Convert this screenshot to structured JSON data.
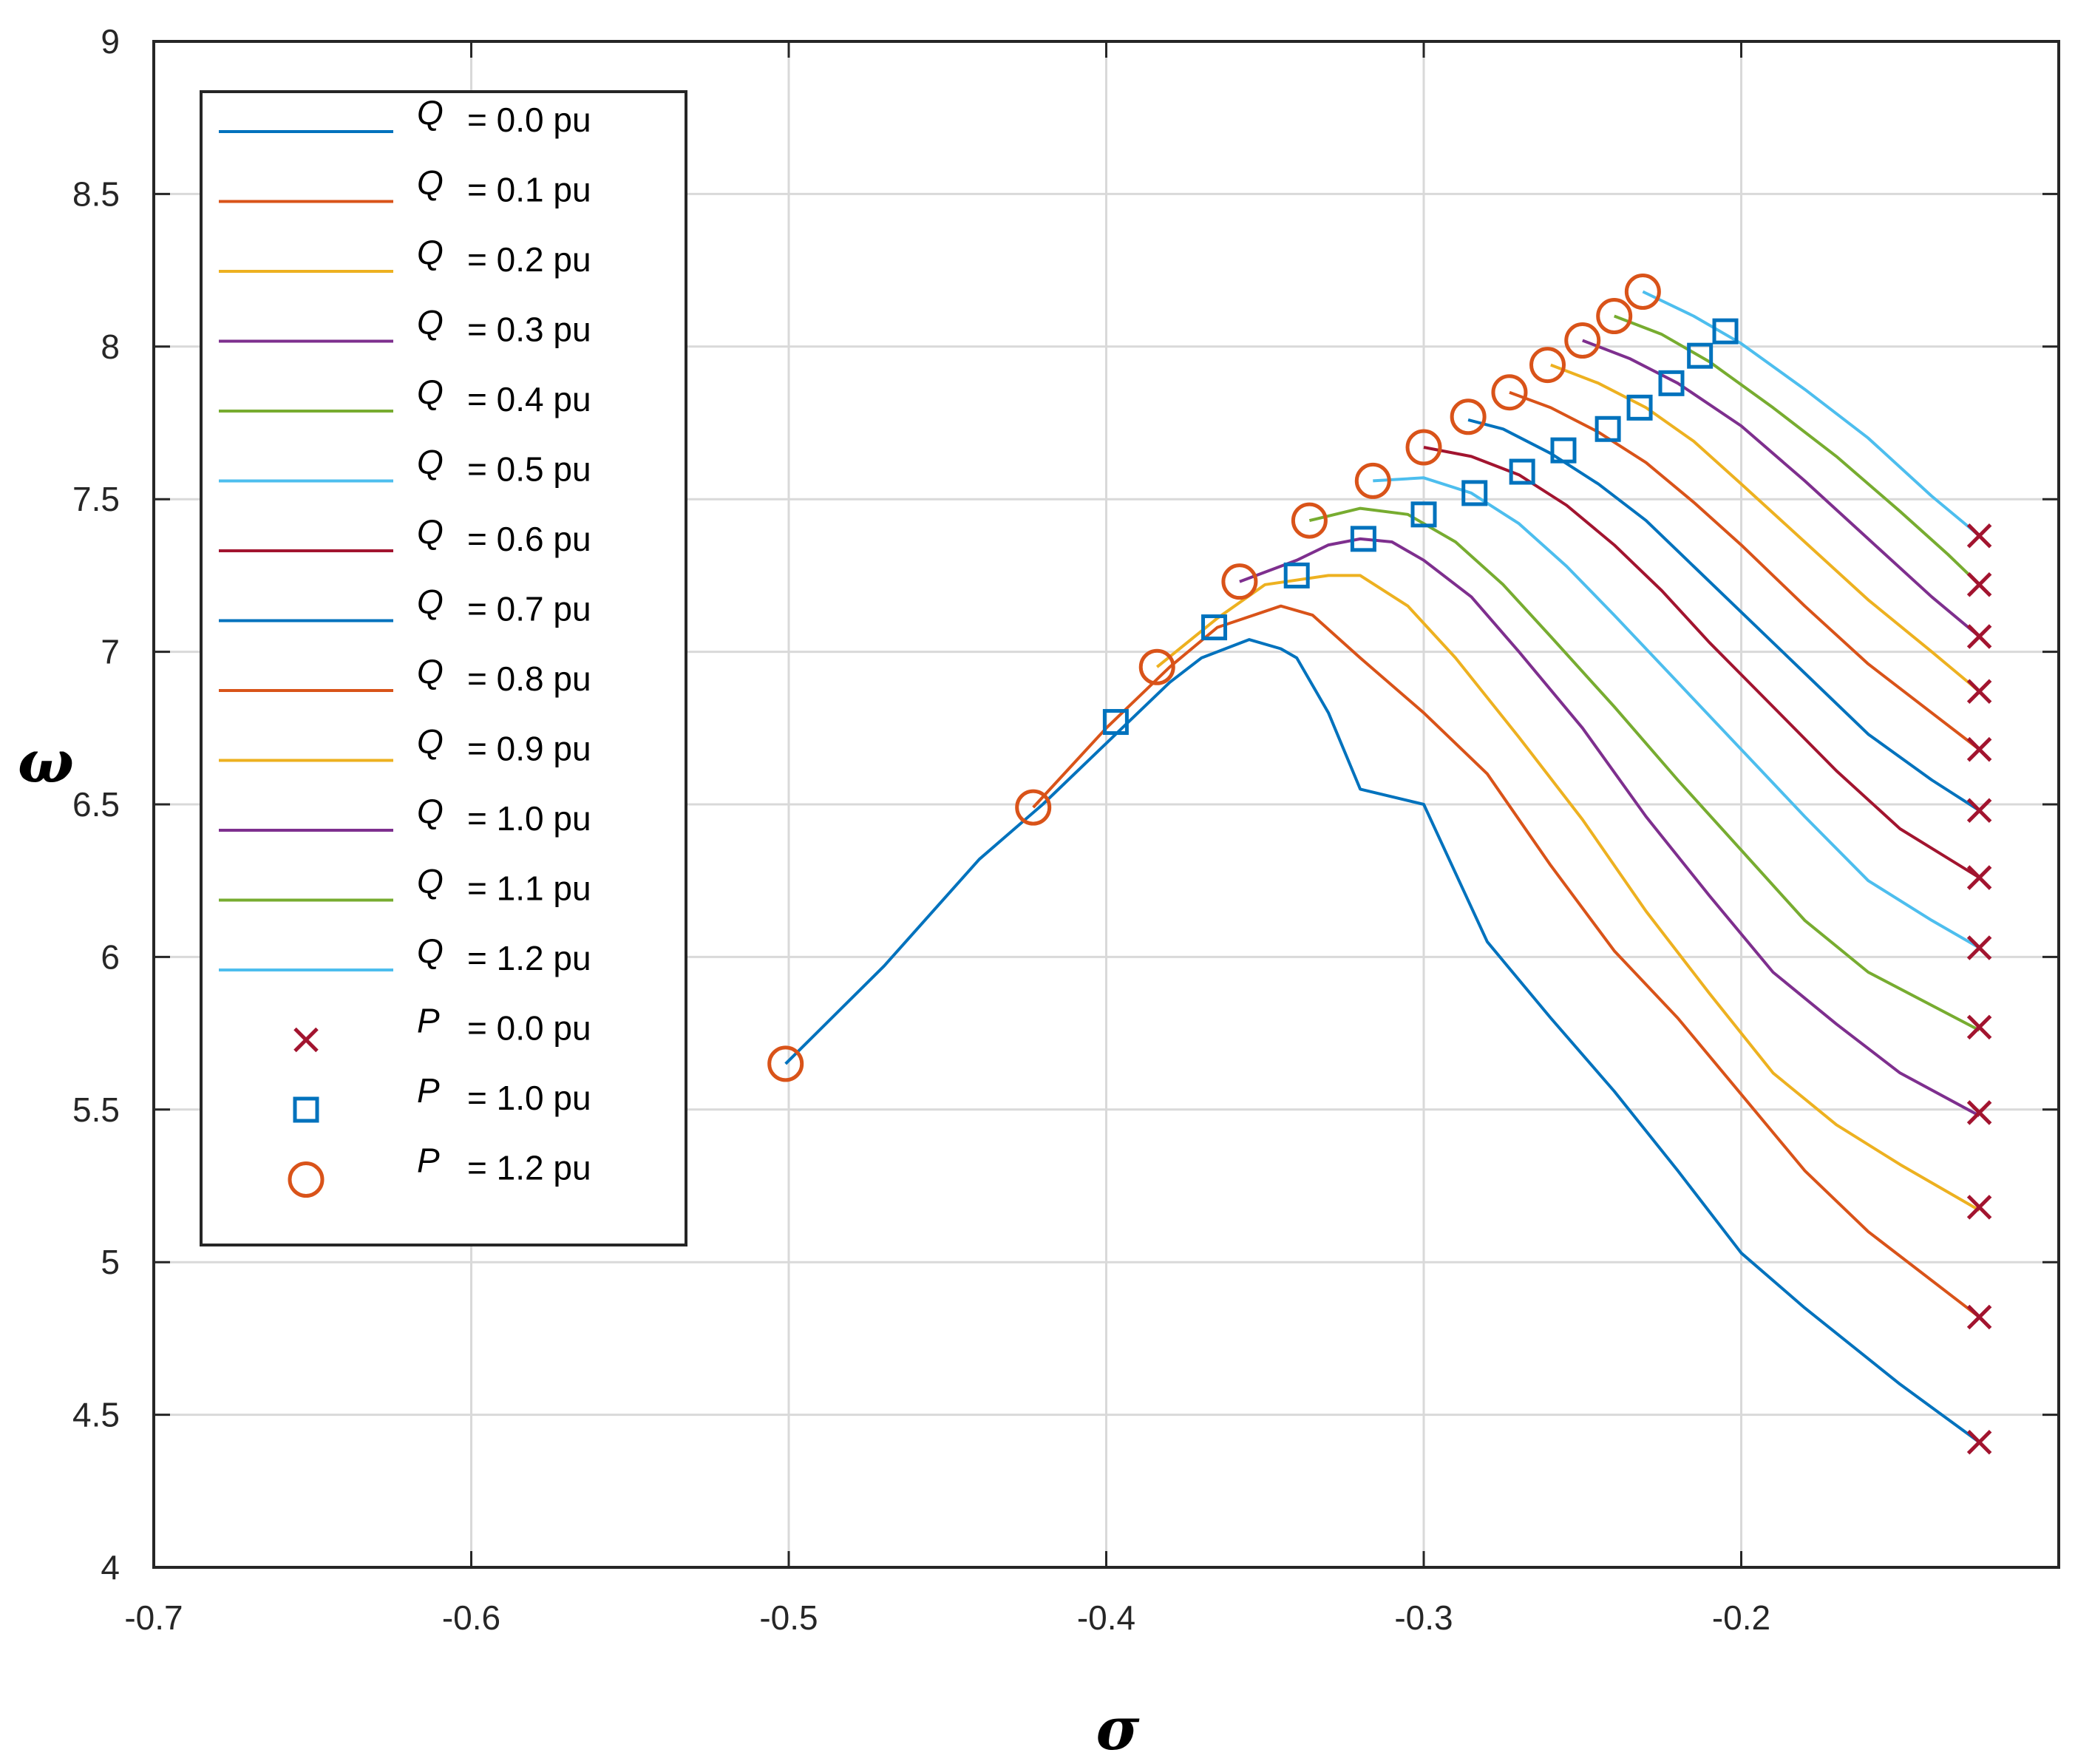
{
  "chart_data": {
    "type": "line",
    "title": "",
    "xlabel": "σ",
    "ylabel": "ω",
    "xlim": [
      -0.7,
      -0.1
    ],
    "ylim": [
      4,
      9
    ],
    "grid": true,
    "xticks": [
      "-0.7",
      "-0.6",
      "-0.5",
      "-0.4",
      "-0.3",
      "-0.2"
    ],
    "yticks": [
      "4",
      "4.5",
      "5",
      "5.5",
      "6",
      "6.5",
      "7",
      "7.5",
      "8",
      "8.5",
      "9"
    ],
    "legend_position": "top-left",
    "series": [
      {
        "name": "Q = 0.0 pu",
        "var": "Q",
        "text": "= 0.0 pu",
        "color": "#0072BD",
        "points": [
          [
            -0.501,
            5.65
          ],
          [
            -0.47,
            5.97
          ],
          [
            -0.44,
            6.32
          ],
          [
            -0.42,
            6.5
          ],
          [
            -0.4,
            6.7
          ],
          [
            -0.39,
            6.8
          ],
          [
            -0.38,
            6.9
          ],
          [
            -0.37,
            6.98
          ],
          [
            -0.355,
            7.04
          ],
          [
            -0.345,
            7.01
          ],
          [
            -0.34,
            6.98
          ],
          [
            -0.33,
            6.8
          ],
          [
            -0.32,
            6.55
          ],
          [
            -0.3,
            6.5
          ],
          [
            -0.28,
            6.05
          ],
          [
            -0.26,
            5.8
          ],
          [
            -0.24,
            5.56
          ],
          [
            -0.22,
            5.3
          ],
          [
            -0.2,
            5.03
          ],
          [
            -0.18,
            4.85
          ],
          [
            -0.15,
            4.6
          ],
          [
            -0.125,
            4.41
          ]
        ]
      },
      {
        "name": "Q = 0.1 pu",
        "var": "Q",
        "text": "= 0.1 pu",
        "color": "#D95319",
        "points": [
          [
            -0.423,
            6.49
          ],
          [
            -0.4,
            6.75
          ],
          [
            -0.38,
            6.95
          ],
          [
            -0.365,
            7.08
          ],
          [
            -0.345,
            7.15
          ],
          [
            -0.335,
            7.12
          ],
          [
            -0.32,
            6.98
          ],
          [
            -0.3,
            6.8
          ],
          [
            -0.28,
            6.6
          ],
          [
            -0.26,
            6.3
          ],
          [
            -0.24,
            6.02
          ],
          [
            -0.22,
            5.8
          ],
          [
            -0.2,
            5.55
          ],
          [
            -0.18,
            5.3
          ],
          [
            -0.16,
            5.1
          ],
          [
            -0.125,
            4.82
          ]
        ]
      },
      {
        "name": "Q = 0.2 pu",
        "var": "Q",
        "text": "= 0.2 pu",
        "color": "#EDB120",
        "points": [
          [
            -0.384,
            6.95
          ],
          [
            -0.365,
            7.11
          ],
          [
            -0.35,
            7.22
          ],
          [
            -0.33,
            7.25
          ],
          [
            -0.32,
            7.25
          ],
          [
            -0.305,
            7.15
          ],
          [
            -0.29,
            6.98
          ],
          [
            -0.27,
            6.72
          ],
          [
            -0.25,
            6.45
          ],
          [
            -0.23,
            6.15
          ],
          [
            -0.21,
            5.88
          ],
          [
            -0.19,
            5.62
          ],
          [
            -0.17,
            5.45
          ],
          [
            -0.15,
            5.32
          ],
          [
            -0.125,
            5.17
          ]
        ]
      },
      {
        "name": "Q = 0.3 pu",
        "var": "Q",
        "text": "= 0.3 pu",
        "color": "#7E2F8E",
        "points": [
          [
            -0.358,
            7.23
          ],
          [
            -0.34,
            7.3
          ],
          [
            -0.33,
            7.35
          ],
          [
            -0.32,
            7.37
          ],
          [
            -0.31,
            7.36
          ],
          [
            -0.3,
            7.3
          ],
          [
            -0.285,
            7.18
          ],
          [
            -0.27,
            7.0
          ],
          [
            -0.25,
            6.75
          ],
          [
            -0.23,
            6.46
          ],
          [
            -0.21,
            6.2
          ],
          [
            -0.19,
            5.95
          ],
          [
            -0.17,
            5.78
          ],
          [
            -0.15,
            5.62
          ],
          [
            -0.125,
            5.48
          ]
        ]
      },
      {
        "name": "Q = 0.4 pu",
        "var": "Q",
        "text": "= 0.4 pu",
        "color": "#77AC30",
        "points": [
          [
            -0.336,
            7.43
          ],
          [
            -0.32,
            7.47
          ],
          [
            -0.305,
            7.45
          ],
          [
            -0.29,
            7.36
          ],
          [
            -0.275,
            7.22
          ],
          [
            -0.26,
            7.05
          ],
          [
            -0.24,
            6.82
          ],
          [
            -0.22,
            6.58
          ],
          [
            -0.2,
            6.35
          ],
          [
            -0.18,
            6.12
          ],
          [
            -0.16,
            5.95
          ],
          [
            -0.125,
            5.76
          ]
        ]
      },
      {
        "name": "Q = 0.5 pu",
        "var": "Q",
        "text": "= 0.5 pu",
        "color": "#4DBEEE",
        "points": [
          [
            -0.316,
            7.56
          ],
          [
            -0.3,
            7.57
          ],
          [
            -0.285,
            7.52
          ],
          [
            -0.27,
            7.42
          ],
          [
            -0.255,
            7.28
          ],
          [
            -0.24,
            7.12
          ],
          [
            -0.22,
            6.9
          ],
          [
            -0.2,
            6.68
          ],
          [
            -0.18,
            6.46
          ],
          [
            -0.16,
            6.25
          ],
          [
            -0.14,
            6.12
          ],
          [
            -0.125,
            6.03
          ]
        ]
      },
      {
        "name": "Q = 0.6 pu",
        "var": "Q",
        "text": "= 0.6 pu",
        "color": "#A2142F",
        "points": [
          [
            -0.3,
            7.67
          ],
          [
            -0.285,
            7.64
          ],
          [
            -0.27,
            7.58
          ],
          [
            -0.255,
            7.48
          ],
          [
            -0.24,
            7.35
          ],
          [
            -0.225,
            7.2
          ],
          [
            -0.21,
            7.03
          ],
          [
            -0.19,
            6.82
          ],
          [
            -0.17,
            6.61
          ],
          [
            -0.15,
            6.42
          ],
          [
            -0.125,
            6.26
          ]
        ]
      },
      {
        "name": "Q = 0.7 pu",
        "var": "Q",
        "text": "= 0.7 pu",
        "color": "#0072BD",
        "points": [
          [
            -0.286,
            7.76
          ],
          [
            -0.275,
            7.73
          ],
          [
            -0.26,
            7.65
          ],
          [
            -0.245,
            7.55
          ],
          [
            -0.23,
            7.43
          ],
          [
            -0.215,
            7.28
          ],
          [
            -0.2,
            7.13
          ],
          [
            -0.18,
            6.93
          ],
          [
            -0.16,
            6.73
          ],
          [
            -0.14,
            6.58
          ],
          [
            -0.125,
            6.48
          ]
        ]
      },
      {
        "name": "Q = 0.8 pu",
        "var": "Q",
        "text": "= 0.8 pu",
        "color": "#D95319",
        "points": [
          [
            -0.273,
            7.85
          ],
          [
            -0.26,
            7.8
          ],
          [
            -0.245,
            7.72
          ],
          [
            -0.23,
            7.62
          ],
          [
            -0.215,
            7.49
          ],
          [
            -0.2,
            7.35
          ],
          [
            -0.18,
            7.15
          ],
          [
            -0.16,
            6.96
          ],
          [
            -0.14,
            6.8
          ],
          [
            -0.125,
            6.68
          ]
        ]
      },
      {
        "name": "Q = 0.9 pu",
        "var": "Q",
        "text": "= 0.9 pu",
        "color": "#EDB120",
        "points": [
          [
            -0.26,
            7.94
          ],
          [
            -0.245,
            7.88
          ],
          [
            -0.23,
            7.8
          ],
          [
            -0.215,
            7.69
          ],
          [
            -0.2,
            7.55
          ],
          [
            -0.18,
            7.36
          ],
          [
            -0.16,
            7.17
          ],
          [
            -0.14,
            7.0
          ],
          [
            -0.125,
            6.87
          ]
        ]
      },
      {
        "name": "Q = 1.0 pu",
        "var": "Q",
        "text": "= 1.0 pu",
        "color": "#7E2F8E",
        "points": [
          [
            -0.25,
            8.02
          ],
          [
            -0.235,
            7.96
          ],
          [
            -0.22,
            7.88
          ],
          [
            -0.2,
            7.74
          ],
          [
            -0.18,
            7.56
          ],
          [
            -0.16,
            7.37
          ],
          [
            -0.14,
            7.18
          ],
          [
            -0.125,
            7.05
          ]
        ]
      },
      {
        "name": "Q = 1.1 pu",
        "var": "Q",
        "text": "= 1.1 pu",
        "color": "#77AC30",
        "points": [
          [
            -0.24,
            8.1
          ],
          [
            -0.225,
            8.04
          ],
          [
            -0.21,
            7.95
          ],
          [
            -0.19,
            7.8
          ],
          [
            -0.17,
            7.64
          ],
          [
            -0.15,
            7.46
          ],
          [
            -0.135,
            7.32
          ],
          [
            -0.125,
            7.22
          ]
        ]
      },
      {
        "name": "Q = 1.2 pu",
        "var": "Q",
        "text": "= 1.2 pu",
        "color": "#4DBEEE",
        "points": [
          [
            -0.231,
            8.18
          ],
          [
            -0.215,
            8.1
          ],
          [
            -0.2,
            8.01
          ],
          [
            -0.18,
            7.86
          ],
          [
            -0.16,
            7.7
          ],
          [
            -0.14,
            7.51
          ],
          [
            -0.125,
            7.38
          ]
        ]
      }
    ],
    "markers": [
      {
        "name": "P = 0.0 pu",
        "var": "P",
        "text": "= 0.0 pu",
        "shape": "x",
        "color": "#A2142F",
        "points": [
          [
            -0.125,
            7.38
          ],
          [
            -0.125,
            7.22
          ],
          [
            -0.125,
            7.05
          ],
          [
            -0.125,
            6.87
          ],
          [
            -0.125,
            6.68
          ],
          [
            -0.125,
            6.48
          ],
          [
            -0.125,
            6.26
          ],
          [
            -0.125,
            6.03
          ],
          [
            -0.125,
            5.77
          ],
          [
            -0.125,
            5.49
          ],
          [
            -0.125,
            5.18
          ],
          [
            -0.125,
            4.82
          ],
          [
            -0.125,
            4.41
          ]
        ]
      },
      {
        "name": "P = 1.0 pu",
        "var": "P",
        "text": "= 1.0 pu",
        "shape": "square",
        "color": "#0072BD",
        "points": [
          [
            -0.397,
            6.77
          ],
          [
            -0.366,
            7.08
          ],
          [
            -0.34,
            7.25
          ],
          [
            -0.319,
            7.37
          ],
          [
            -0.3,
            7.45
          ],
          [
            -0.284,
            7.52
          ],
          [
            -0.269,
            7.59
          ],
          [
            -0.256,
            7.66
          ],
          [
            -0.242,
            7.73
          ],
          [
            -0.232,
            7.8
          ],
          [
            -0.222,
            7.88
          ],
          [
            -0.213,
            7.97
          ],
          [
            -0.205,
            8.05
          ]
        ]
      },
      {
        "name": "P = 1.2 pu",
        "var": "P",
        "text": "= 1.2 pu",
        "shape": "circle",
        "color": "#D95319",
        "points": [
          [
            -0.501,
            5.65
          ],
          [
            -0.423,
            6.49
          ],
          [
            -0.384,
            6.95
          ],
          [
            -0.358,
            7.23
          ],
          [
            -0.336,
            7.43
          ],
          [
            -0.316,
            7.56
          ],
          [
            -0.3,
            7.67
          ],
          [
            -0.286,
            7.77
          ],
          [
            -0.273,
            7.85
          ],
          [
            -0.261,
            7.94
          ],
          [
            -0.25,
            8.02
          ],
          [
            -0.24,
            8.1
          ],
          [
            -0.231,
            8.18
          ]
        ]
      }
    ]
  }
}
